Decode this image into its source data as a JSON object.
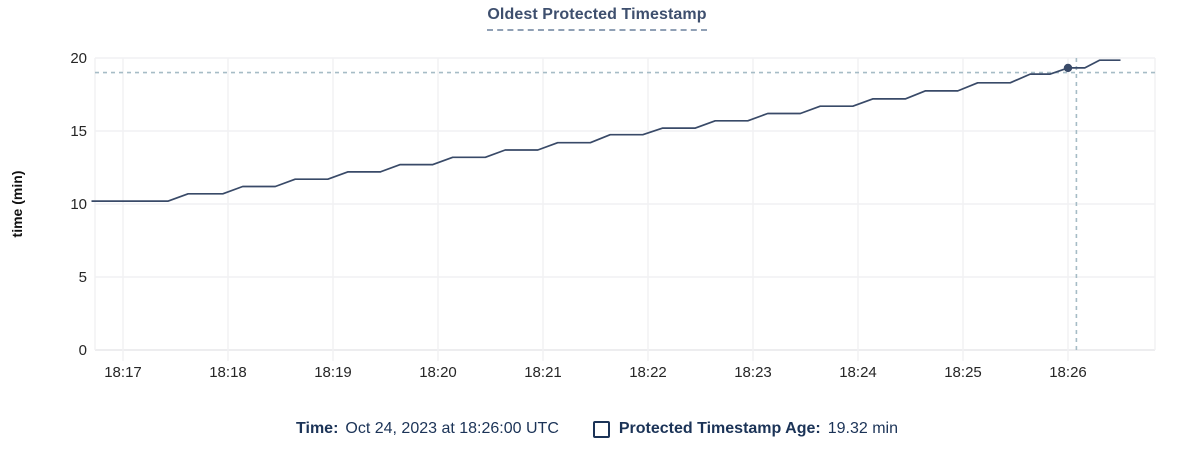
{
  "title": "Oldest Protected Timestamp",
  "legend": {
    "time_label": "Time:",
    "time_value": "Oct 24, 2023 at 18:26:00 UTC",
    "series_label": "Protected Timestamp Age:",
    "series_value": "19.32 min"
  },
  "colors": {
    "series_line": "#394a68",
    "title_text": "#3e4f6e",
    "legend_text": "#1b3357",
    "axis_text": "#262626",
    "gridline": "#f1f1f3",
    "axis_line": "#e7e7ea",
    "crosshair": "#a6bcc6"
  },
  "chart_data": {
    "type": "line",
    "title": "Oldest Protected Timestamp",
    "xlabel": "",
    "ylabel": "time (min)",
    "ylim": [
      0,
      20
    ],
    "grid": true,
    "legend_position": "bottom",
    "y_ticks": [
      {
        "label": "0",
        "v": 0
      },
      {
        "label": "5",
        "v": 5
      },
      {
        "label": "10",
        "v": 10
      },
      {
        "label": "15",
        "v": 15
      },
      {
        "label": "20",
        "v": 20
      }
    ],
    "x_ticks": [
      {
        "label": "18:17",
        "t": 0
      },
      {
        "label": "18:18",
        "t": 1
      },
      {
        "label": "18:19",
        "t": 2
      },
      {
        "label": "18:20",
        "t": 3
      },
      {
        "label": "18:21",
        "t": 4
      },
      {
        "label": "18:22",
        "t": 5
      },
      {
        "label": "18:23",
        "t": 6
      },
      {
        "label": "18:24",
        "t": 7
      },
      {
        "label": "18:25",
        "t": 8
      },
      {
        "label": "18:26",
        "t": 9
      }
    ],
    "series": [
      {
        "name": "Protected Timestamp Age",
        "unit": "min",
        "points": [
          [
            -0.3,
            10.2
          ],
          [
            0.43,
            10.2
          ],
          [
            0.62,
            10.7
          ],
          [
            0.95,
            10.7
          ],
          [
            1.14,
            11.2
          ],
          [
            1.45,
            11.2
          ],
          [
            1.64,
            11.7
          ],
          [
            1.95,
            11.7
          ],
          [
            2.14,
            12.2
          ],
          [
            2.45,
            12.2
          ],
          [
            2.64,
            12.7
          ],
          [
            2.95,
            12.7
          ],
          [
            3.14,
            13.2
          ],
          [
            3.45,
            13.2
          ],
          [
            3.64,
            13.7
          ],
          [
            3.95,
            13.7
          ],
          [
            4.14,
            14.2
          ],
          [
            4.45,
            14.2
          ],
          [
            4.64,
            14.75
          ],
          [
            4.95,
            14.75
          ],
          [
            5.14,
            15.2
          ],
          [
            5.45,
            15.2
          ],
          [
            5.64,
            15.7
          ],
          [
            5.95,
            15.7
          ],
          [
            6.14,
            16.2
          ],
          [
            6.45,
            16.2
          ],
          [
            6.64,
            16.7
          ],
          [
            6.95,
            16.7
          ],
          [
            7.14,
            17.2
          ],
          [
            7.45,
            17.2
          ],
          [
            7.64,
            17.75
          ],
          [
            7.95,
            17.75
          ],
          [
            8.14,
            18.3
          ],
          [
            8.45,
            18.3
          ],
          [
            8.64,
            18.9
          ],
          [
            8.83,
            18.9
          ],
          [
            9.0,
            19.32
          ],
          [
            9.16,
            19.32
          ],
          [
            9.3,
            19.85
          ],
          [
            9.5,
            19.85
          ]
        ]
      }
    ],
    "hover": {
      "point_t": 9.0,
      "point_value": 19.32,
      "crosshair_t": 9.08,
      "crosshair_value": 19.0,
      "time_text": "Oct 24, 2023 at 18:26:00 UTC",
      "value_text": "19.32 min"
    }
  }
}
